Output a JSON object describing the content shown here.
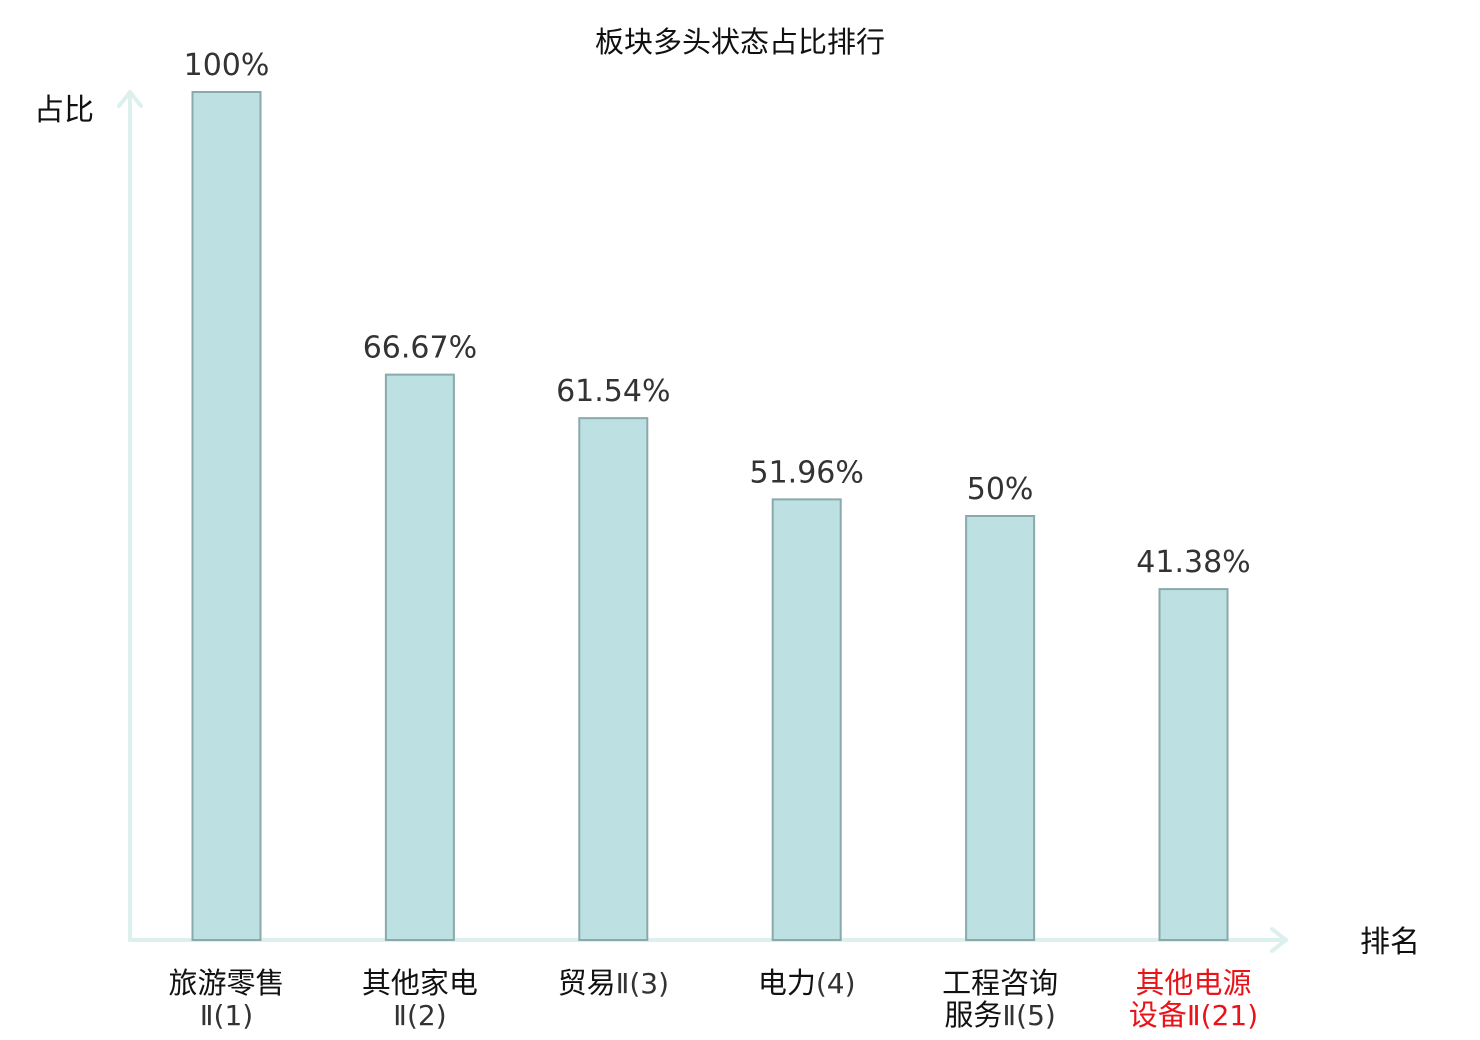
{
  "chart_data": {
    "type": "bar",
    "title": "板块多头状态占比排行",
    "ylabel": "占比",
    "xlabel": "排名",
    "ylim": [
      0,
      100
    ],
    "grid": false,
    "categories": [
      {
        "name_lines": [
          "旅游零售"
        ],
        "rank_prefix": "",
        "rank": "Ⅱ(1)",
        "highlight": false
      },
      {
        "name_lines": [
          "其他家电"
        ],
        "rank_prefix": "",
        "rank": "Ⅱ(2)",
        "highlight": false
      },
      {
        "name_lines": [],
        "rank_prefix": "贸易",
        "rank": "Ⅱ(3)",
        "highlight": false
      },
      {
        "name_lines": [],
        "rank_prefix": "电力",
        "rank": "(4)",
        "highlight": false
      },
      {
        "name_lines": [
          "工程咨询"
        ],
        "rank_prefix": "服务",
        "rank": "Ⅱ(5)",
        "highlight": false
      },
      {
        "name_lines": [
          "其他电源"
        ],
        "rank_prefix": "设备",
        "rank": "Ⅱ(21)",
        "highlight": true
      }
    ],
    "values": [
      100,
      66.67,
      61.54,
      51.96,
      50,
      41.38
    ],
    "value_labels": [
      "100%",
      "66.67%",
      "61.54%",
      "51.96%",
      "50%",
      "41.38%"
    ]
  },
  "colors": {
    "bar_fill": "#bde0e3",
    "bar_stroke": "#8aa9ab",
    "axis": "#dcf0ee",
    "text": "#111111",
    "value_text": "#333333",
    "rank_text": "#333333",
    "highlight": "#e8141a"
  }
}
